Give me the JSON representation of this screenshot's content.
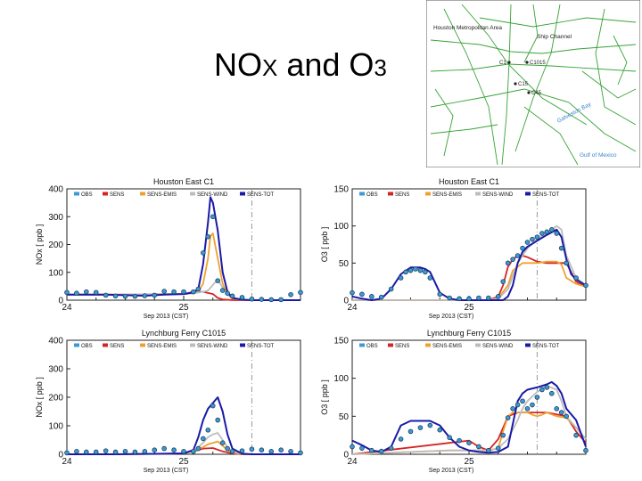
{
  "slide": {
    "title_main": "NO",
    "title_sub": "X",
    "title_and": " and O",
    "title_sub2": "3"
  },
  "map": {
    "labels": [
      "Houston Metropolitan Area",
      "Ship Channel",
      "C1",
      "C1015",
      "C15",
      "C45",
      "Galveston Bay",
      "Gulf of Mexico"
    ],
    "road_color": "#36a336"
  },
  "legend": [
    {
      "name": "OBS",
      "color": "#3b9ad6"
    },
    {
      "name": "SENS",
      "color": "#d62424"
    },
    {
      "name": "SENS-EMIS",
      "color": "#f0a030"
    },
    {
      "name": "SENS-WIND",
      "color": "#bdbdbd"
    },
    {
      "name": "SENS-TOT",
      "color": "#1a1aa8"
    }
  ],
  "xaxis": {
    "label": "Sep 2013 (CST)",
    "tick_labels": [
      "24",
      "25"
    ],
    "range": [
      0,
      48
    ],
    "ticks": [
      0,
      24
    ],
    "vline": 38
  },
  "chart_data": [
    {
      "type": "line",
      "title": "Houston East C1",
      "ylabel": "NOx [ ppb ]",
      "ylim": [
        0,
        400
      ],
      "yticks": [
        0,
        100,
        200,
        300,
        400
      ],
      "series": [
        {
          "name": "OBS",
          "x": [
            0,
            2,
            4,
            6,
            8,
            10,
            12,
            14,
            16,
            18,
            20,
            22,
            24,
            26,
            27,
            28,
            29,
            30,
            31,
            32,
            33,
            34,
            36,
            38,
            40,
            42,
            44,
            46,
            48
          ],
          "values": [
            28,
            25,
            30,
            28,
            18,
            15,
            14,
            14,
            16,
            18,
            32,
            30,
            30,
            30,
            40,
            170,
            228,
            300,
            70,
            35,
            25,
            15,
            10,
            4,
            3,
            2,
            2,
            20,
            28
          ]
        },
        {
          "name": "SENS",
          "x": [
            0,
            10,
            20,
            24,
            26,
            28,
            30,
            31,
            32,
            34,
            36,
            38,
            40,
            48
          ],
          "values": [
            20,
            20,
            22,
            22,
            30,
            30,
            22,
            8,
            3,
            0,
            0,
            0,
            0,
            0
          ]
        },
        {
          "name": "SENS-EMIS",
          "x": [
            0,
            10,
            20,
            24,
            26,
            27,
            28,
            29,
            29.5,
            30,
            31,
            32,
            33,
            34,
            36,
            38,
            40,
            48
          ],
          "values": [
            20,
            20,
            22,
            22,
            25,
            30,
            60,
            150,
            230,
            240,
            150,
            60,
            20,
            5,
            2,
            0,
            0,
            0
          ]
        },
        {
          "name": "SENS-WIND",
          "x": [
            0,
            10,
            20,
            24,
            26,
            28,
            29,
            30,
            31,
            32,
            33,
            34,
            36,
            38,
            40,
            48
          ],
          "values": [
            20,
            20,
            22,
            22,
            25,
            30,
            35,
            55,
            75,
            45,
            20,
            8,
            2,
            0,
            0,
            0
          ]
        },
        {
          "name": "SENS-TOT",
          "x": [
            0,
            8,
            12,
            16,
            20,
            24,
            26,
            27,
            28,
            29,
            29.5,
            30,
            31,
            32,
            33,
            34,
            36,
            38,
            40,
            48
          ],
          "values": [
            20,
            20,
            18,
            16,
            20,
            22,
            28,
            40,
            130,
            280,
            370,
            350,
            250,
            100,
            30,
            8,
            2,
            0,
            0,
            0
          ]
        }
      ]
    },
    {
      "type": "line",
      "title": "Houston East C1",
      "ylabel": "O3 [ ppb ]",
      "ylim": [
        0,
        150
      ],
      "yticks": [
        0,
        50,
        100,
        150
      ],
      "series": [
        {
          "name": "OBS",
          "x": [
            0,
            2,
            4,
            6,
            8,
            10,
            11,
            12,
            13,
            14,
            15,
            16,
            18,
            20,
            22,
            24,
            26,
            28,
            30,
            31,
            32,
            33,
            34,
            35,
            36,
            37,
            38,
            39,
            40,
            41,
            42,
            43,
            44,
            46,
            48
          ],
          "values": [
            10,
            8,
            5,
            4,
            15,
            30,
            38,
            40,
            42,
            40,
            38,
            30,
            8,
            3,
            2,
            2,
            3,
            3,
            5,
            25,
            50,
            55,
            60,
            70,
            78,
            82,
            85,
            90,
            92,
            95,
            90,
            70,
            50,
            30,
            20
          ]
        },
        {
          "name": "SENS",
          "x": [
            0,
            20,
            28,
            30,
            31,
            32,
            33,
            34,
            35,
            36,
            37,
            38,
            40,
            44,
            46,
            48
          ],
          "values": [
            0,
            0,
            0,
            5,
            20,
            45,
            55,
            60,
            60,
            58,
            55,
            52,
            50,
            50,
            25,
            18
          ]
        },
        {
          "name": "SENS-EMIS",
          "x": [
            0,
            20,
            28,
            30,
            32,
            33,
            34,
            35,
            36,
            37,
            38,
            40,
            42,
            43,
            44,
            46,
            48
          ],
          "values": [
            0,
            0,
            0,
            3,
            20,
            40,
            45,
            50,
            50,
            50,
            50,
            52,
            52,
            48,
            30,
            22,
            18
          ]
        },
        {
          "name": "SENS-WIND",
          "x": [
            0,
            20,
            28,
            30,
            32,
            34,
            35,
            36,
            38,
            40,
            42,
            43,
            44,
            46,
            48
          ],
          "values": [
            0,
            0,
            0,
            2,
            15,
            50,
            60,
            70,
            82,
            90,
            100,
            95,
            60,
            30,
            20
          ]
        },
        {
          "name": "SENS-TOT",
          "x": [
            0,
            2,
            4,
            6,
            8,
            10,
            12,
            14,
            15,
            16,
            18,
            20,
            22,
            24,
            26,
            28,
            30,
            31,
            32,
            33,
            34,
            35,
            36,
            38,
            40,
            42,
            43,
            44,
            45,
            46,
            48
          ],
          "values": [
            5,
            2,
            0,
            2,
            15,
            35,
            44,
            44,
            42,
            38,
            10,
            2,
            0,
            0,
            0,
            0,
            0,
            0,
            5,
            20,
            50,
            65,
            72,
            80,
            88,
            95,
            85,
            55,
            35,
            28,
            20
          ]
        }
      ]
    },
    {
      "type": "line",
      "title": "Lynchburg Ferry C1015",
      "ylabel": "NOx [ ppb ]",
      "ylim": [
        0,
        400
      ],
      "yticks": [
        0,
        100,
        200,
        300,
        400
      ],
      "series": [
        {
          "name": "OBS",
          "x": [
            0,
            2,
            4,
            6,
            8,
            10,
            12,
            14,
            16,
            18,
            20,
            22,
            24,
            26,
            27,
            28,
            29,
            30,
            31,
            32,
            33,
            34,
            36,
            38,
            40,
            42,
            44,
            46,
            48
          ],
          "values": [
            5,
            10,
            8,
            8,
            12,
            8,
            10,
            8,
            10,
            15,
            20,
            15,
            10,
            10,
            20,
            55,
            85,
            170,
            120,
            40,
            20,
            10,
            12,
            18,
            15,
            10,
            15,
            10,
            5
          ]
        },
        {
          "name": "SENS",
          "x": [
            0,
            10,
            20,
            24,
            26,
            28,
            30,
            32,
            34,
            36,
            38,
            48
          ],
          "values": [
            0,
            0,
            2,
            3,
            10,
            20,
            22,
            10,
            3,
            0,
            0,
            0
          ]
        },
        {
          "name": "SENS-EMIS",
          "x": [
            0,
            10,
            20,
            24,
            26,
            28,
            29,
            30,
            31,
            32,
            33,
            34,
            36,
            38,
            48
          ],
          "values": [
            0,
            0,
            2,
            3,
            10,
            25,
            35,
            40,
            45,
            30,
            15,
            5,
            2,
            0,
            0
          ]
        },
        {
          "name": "SENS-WIND",
          "x": [
            0,
            10,
            20,
            24,
            26,
            28,
            29,
            30,
            31,
            32,
            33,
            34,
            36,
            38,
            48
          ],
          "values": [
            0,
            0,
            2,
            3,
            10,
            40,
            60,
            70,
            75,
            50,
            25,
            8,
            2,
            0,
            0
          ]
        },
        {
          "name": "SENS-TOT",
          "x": [
            0,
            10,
            20,
            24,
            26,
            27,
            28,
            29,
            30,
            31,
            32,
            33,
            34,
            36,
            38,
            48
          ],
          "values": [
            0,
            0,
            2,
            3,
            15,
            60,
            120,
            160,
            180,
            200,
            150,
            70,
            20,
            2,
            0,
            0
          ]
        }
      ]
    },
    {
      "type": "line",
      "title": "Lynchburg Ferry C1015",
      "ylabel": "O3 [ ppb ]",
      "ylim": [
        0,
        150
      ],
      "yticks": [
        0,
        50,
        100,
        150
      ],
      "series": [
        {
          "name": "OBS",
          "x": [
            0,
            2,
            4,
            6,
            8,
            10,
            12,
            14,
            16,
            18,
            20,
            22,
            24,
            26,
            28,
            30,
            31,
            32,
            33,
            34,
            35,
            36,
            37,
            38,
            39,
            40,
            41,
            42,
            43,
            44,
            46,
            48
          ],
          "values": [
            10,
            8,
            5,
            4,
            8,
            20,
            30,
            35,
            38,
            32,
            22,
            18,
            15,
            10,
            5,
            8,
            25,
            48,
            60,
            65,
            70,
            60,
            65,
            75,
            85,
            88,
            80,
            60,
            55,
            50,
            25,
            5
          ]
        },
        {
          "name": "SENS",
          "x": [
            0,
            20,
            24,
            26,
            28,
            30,
            32,
            34,
            36,
            38,
            40,
            44,
            46,
            48
          ],
          "values": [
            0,
            15,
            18,
            10,
            5,
            20,
            50,
            55,
            55,
            55,
            55,
            50,
            30,
            15
          ]
        },
        {
          "name": "SENS-EMIS",
          "x": [
            0,
            20,
            28,
            30,
            31,
            32,
            33,
            34,
            35,
            36,
            37,
            38,
            39,
            40,
            42,
            44,
            46,
            48
          ],
          "values": [
            0,
            5,
            5,
            8,
            30,
            50,
            55,
            55,
            55,
            55,
            52,
            50,
            52,
            55,
            50,
            48,
            35,
            20
          ]
        },
        {
          "name": "SENS-WIND",
          "x": [
            0,
            20,
            28,
            30,
            32,
            34,
            35,
            36,
            38,
            40,
            42,
            43,
            44,
            46,
            48
          ],
          "values": [
            0,
            5,
            5,
            8,
            20,
            45,
            60,
            70,
            82,
            90,
            85,
            70,
            50,
            35,
            20
          ]
        },
        {
          "name": "SENS-TOT",
          "x": [
            0,
            2,
            4,
            6,
            8,
            10,
            12,
            14,
            16,
            18,
            20,
            22,
            24,
            26,
            28,
            30,
            32,
            33,
            34,
            35,
            36,
            38,
            40,
            41,
            42,
            43,
            44,
            46,
            48
          ],
          "values": [
            18,
            12,
            5,
            3,
            10,
            38,
            44,
            44,
            44,
            38,
            22,
            10,
            5,
            3,
            2,
            3,
            10,
            40,
            70,
            80,
            85,
            88,
            92,
            95,
            90,
            80,
            60,
            45,
            10
          ]
        }
      ]
    }
  ]
}
